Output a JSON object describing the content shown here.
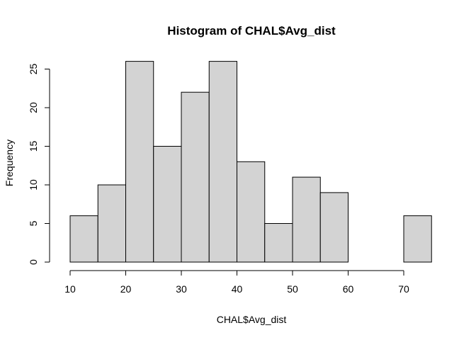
{
  "chart_data": {
    "type": "bar",
    "title": "Histogram of CHAL$Avg_dist",
    "xlabel": "CHAL$Avg_dist",
    "ylabel": "Frequency",
    "bins": [
      {
        "from": 10,
        "to": 15,
        "count": 6
      },
      {
        "from": 15,
        "to": 20,
        "count": 10
      },
      {
        "from": 20,
        "to": 25,
        "count": 26
      },
      {
        "from": 25,
        "to": 30,
        "count": 15
      },
      {
        "from": 30,
        "to": 35,
        "count": 22
      },
      {
        "from": 35,
        "to": 40,
        "count": 26
      },
      {
        "from": 40,
        "to": 45,
        "count": 13
      },
      {
        "from": 45,
        "to": 50,
        "count": 5
      },
      {
        "from": 50,
        "to": 55,
        "count": 11
      },
      {
        "from": 55,
        "to": 60,
        "count": 9
      },
      {
        "from": 60,
        "to": 65,
        "count": 0
      },
      {
        "from": 65,
        "to": 70,
        "count": 0
      },
      {
        "from": 70,
        "to": 75,
        "count": 6
      }
    ],
    "xlim": [
      10,
      75
    ],
    "ylim": [
      0,
      26
    ],
    "xticks": [
      10,
      20,
      30,
      40,
      50,
      60,
      70
    ],
    "yticks": [
      0,
      5,
      10,
      15,
      20,
      25
    ],
    "grid": false,
    "bar_color": "#d3d3d3"
  }
}
